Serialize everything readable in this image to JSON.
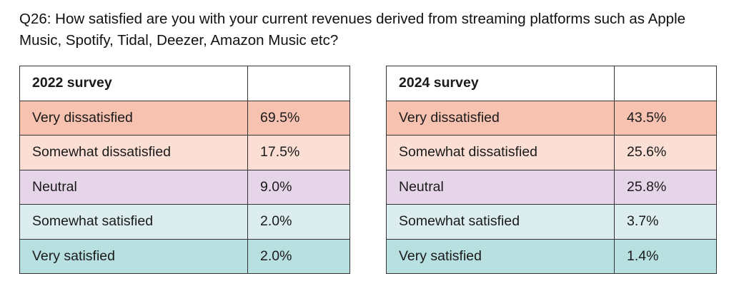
{
  "question": "Q26: How satisfied are you with your current revenues derived from streaming platforms such as Apple Music, Spotify, Tidal, Deezer, Amazon Music etc?",
  "row_colors": [
    "#f7c2b0",
    "#fbdfd5",
    "#e6d5e8",
    "#dbedef",
    "#b9e0e1"
  ],
  "tables": [
    {
      "header": "2022 survey",
      "rows": [
        {
          "label": "Very dissatisfied",
          "value": "69.5%"
        },
        {
          "label": "Somewhat dissatisfied",
          "value": "17.5%"
        },
        {
          "label": "Neutral",
          "value": "9.0%"
        },
        {
          "label": "Somewhat satisfied",
          "value": "2.0%"
        },
        {
          "label": "Very satisfied",
          "value": "2.0%"
        }
      ]
    },
    {
      "header": "2024 survey",
      "rows": [
        {
          "label": "Very dissatisfied",
          "value": "43.5%"
        },
        {
          "label": "Somewhat dissatisfied",
          "value": "25.6%"
        },
        {
          "label": "Neutral",
          "value": "25.8%"
        },
        {
          "label": "Somewhat satisfied",
          "value": "3.7%"
        },
        {
          "label": "Very satisfied",
          "value": "1.4%"
        }
      ]
    }
  ]
}
